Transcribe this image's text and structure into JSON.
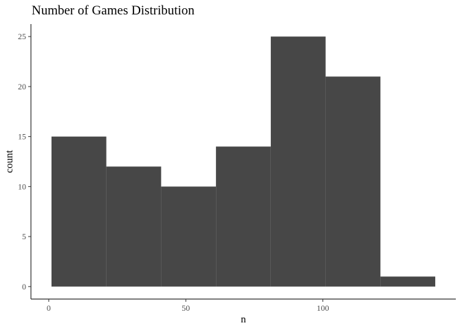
{
  "chart_data": {
    "type": "bar",
    "title": "Number of Games Distribution",
    "xlabel": "n",
    "ylabel": "count",
    "bins": [
      {
        "x0": 1,
        "x1": 21,
        "count": 15
      },
      {
        "x0": 21,
        "x1": 41,
        "count": 12
      },
      {
        "x0": 41,
        "x1": 61,
        "count": 10
      },
      {
        "x0": 61,
        "x1": 81,
        "count": 14
      },
      {
        "x0": 81,
        "x1": 101,
        "count": 25
      },
      {
        "x0": 101,
        "x1": 121,
        "count": 21
      },
      {
        "x0": 121,
        "x1": 141,
        "count": 1
      }
    ],
    "xticks": [
      0,
      50,
      100
    ],
    "yticks": [
      0,
      5,
      10,
      15,
      20,
      25
    ],
    "xlim": [
      -6.5,
      148.5
    ],
    "ylim": [
      -1.25,
      26.25
    ],
    "bar_color": "#474747",
    "grid": false
  }
}
